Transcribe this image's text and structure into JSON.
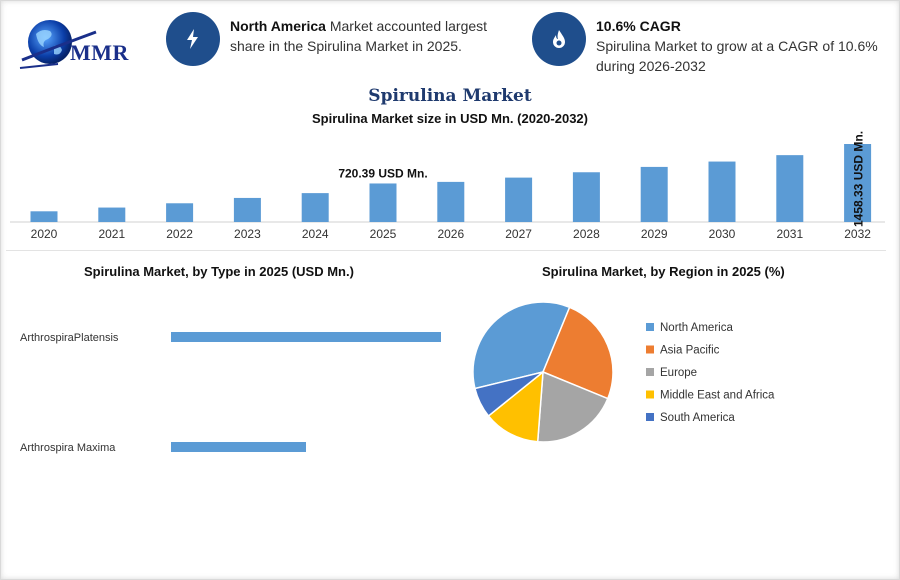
{
  "logo": {
    "text": "MMR"
  },
  "info_cards": [
    {
      "icon": "lightning-icon",
      "bold": "North America",
      "text": " Market accounted largest share in the Spirulina Market in 2025."
    },
    {
      "icon": "flame-drop-icon",
      "bold": "10.6% CAGR",
      "text": "Spirulina Market to grow at a CAGR of 10.6% during 2026-2032"
    }
  ],
  "main_title": "Spirulina Market",
  "colors": {
    "bar": "#5b9bd5",
    "icon_circle": "#1f4e8c",
    "title": "#1f3a6e"
  },
  "chart_data": [
    {
      "type": "bar",
      "title": "Spirulina Market size in USD Mn. (2020-2032)",
      "categories": [
        "2020",
        "2021",
        "2022",
        "2023",
        "2024",
        "2025",
        "2026",
        "2027",
        "2028",
        "2029",
        "2030",
        "2031",
        "2032"
      ],
      "values": [
        200,
        270,
        350,
        450,
        540,
        720.39,
        750,
        830,
        930,
        1030,
        1130,
        1250,
        1458.33
      ],
      "annotations": [
        {
          "category": "2025",
          "label": "720.39 USD Mn."
        },
        {
          "category": "2032",
          "label": "1458.33 USD Mn."
        }
      ],
      "ylim": [
        0,
        1458.33
      ]
    },
    {
      "type": "bar",
      "orientation": "horizontal",
      "title": "Spirulina Market, by Type in 2025 (USD Mn.)",
      "categories": [
        "ArthrospiraPlatensis",
        "Arthrospira Maxima"
      ],
      "values": [
        100,
        50
      ],
      "xlim": [
        0,
        100
      ]
    },
    {
      "type": "pie",
      "title": "Spirulina Market, by Region in 2025 (%)",
      "labels": [
        "North America",
        "Asia Pacific",
        "Europe",
        "Middle East and Africa",
        "South America"
      ],
      "values": [
        35,
        25,
        20,
        13,
        7
      ],
      "colors": [
        "#5b9bd5",
        "#ed7d31",
        "#a5a5a5",
        "#ffc000",
        "#4472c4"
      ],
      "legend": "right"
    }
  ]
}
